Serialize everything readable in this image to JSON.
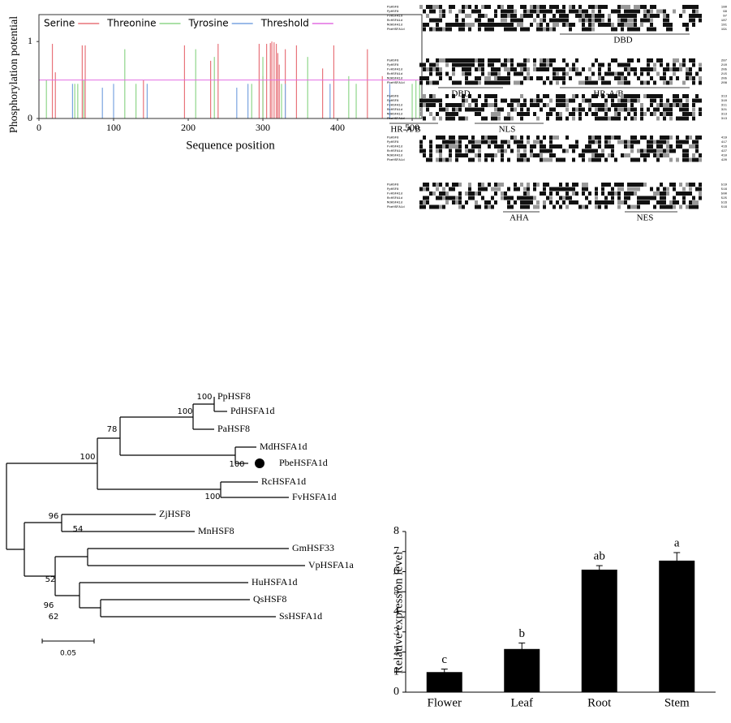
{
  "chart_data": [
    {
      "type": "stem",
      "ylabel": "Phosphorylation potential",
      "xlabel": "Sequence position",
      "xlim": [
        0,
        513
      ],
      "xticks": [
        0,
        100,
        200,
        300,
        400,
        500
      ],
      "ylim": [
        0,
        1.35
      ],
      "yticks": [
        0,
        1
      ],
      "legend": "top",
      "series": [
        {
          "name": "Serine",
          "color": "#e8737a",
          "x": [
            18,
            22,
            58,
            62,
            140,
            195,
            230,
            240,
            295,
            300,
            305,
            310,
            312,
            315,
            318,
            320,
            322,
            330,
            345,
            380,
            395,
            440,
            460
          ],
          "values": [
            0.97,
            0.6,
            0.95,
            0.95,
            0.5,
            0.95,
            0.75,
            0.97,
            0.97,
            0.55,
            0.97,
            0.98,
            1.0,
            0.99,
            0.97,
            0.85,
            0.7,
            0.9,
            0.95,
            0.65,
            0.95,
            0.9,
            0.55
          ]
        },
        {
          "name": "Threonine",
          "color": "#8fd68a",
          "x": [
            10,
            48,
            52,
            60,
            115,
            130,
            210,
            235,
            285,
            300,
            325,
            360,
            415,
            425,
            500,
            505,
            510
          ],
          "values": [
            0.5,
            0.45,
            0.45,
            0.5,
            0.9,
            0.45,
            0.9,
            0.8,
            0.45,
            0.8,
            0.45,
            0.8,
            0.55,
            0.45,
            0.45,
            0.5,
            0.45
          ]
        },
        {
          "name": "Tyrosine",
          "color": "#7aa4e0",
          "x": [
            45,
            85,
            100,
            145,
            265,
            280,
            330,
            390,
            470
          ],
          "values": [
            0.45,
            0.4,
            0.45,
            0.45,
            0.4,
            0.45,
            0.45,
            0.45,
            0.45
          ]
        }
      ],
      "threshold": {
        "name": "Threshold",
        "color": "#e26fe2",
        "value": 0.5
      }
    },
    {
      "type": "bar",
      "ylabel": "Relative expression level",
      "categories": [
        "Flower",
        "Leaf",
        "Root",
        "Stem"
      ],
      "values": [
        1.0,
        2.15,
        6.1,
        6.55
      ],
      "errors": [
        0.15,
        0.3,
        0.2,
        0.4
      ],
      "annotations": [
        "c",
        "b",
        "ab",
        "a"
      ],
      "color": "#000000",
      "ylim": [
        0,
        8
      ],
      "yticks": [
        0,
        1,
        2,
        3,
        4,
        5,
        6,
        7,
        8
      ]
    }
  ],
  "alignment": {
    "names": [
      "PaHSF8",
      "PpHSF8",
      "FvHSFA1d",
      "RcHSFA1d",
      "MdHSFA1d",
      "PbeHSFA1d"
    ],
    "blocks": [
      {
        "ends": [
          180,
          99,
          97,
          187,
          191,
          191
        ],
        "domains": [
          "DBD"
        ]
      },
      {
        "ends": [
          287,
          210,
          205,
          215,
          205,
          208
        ],
        "domains": [
          "DBD",
          "HR-A/B"
        ]
      },
      {
        "ends": [
          313,
          310,
          311,
          321,
          313,
          313
        ],
        "domains": [
          "HR-A/B",
          "NLS"
        ]
      },
      {
        "ends": [
          419,
          417,
          416,
          427,
          410,
          420
        ],
        "domains": []
      },
      {
        "ends": [
          519,
          516,
          500,
          525,
          516,
          516
        ],
        "domains": [
          "AHA",
          "NES"
        ]
      }
    ]
  },
  "tree": {
    "leaves": [
      "PpHSF8",
      "PdHSFA1d",
      "PaHSF8",
      "MdHSFA1d",
      "PbeHSFA1d",
      "RcHSFA1d",
      "FvHSFA1d",
      "ZjHSF8",
      "MnHSF8",
      "GmHSF33",
      "VpHSFA1a",
      "HuHSFA1d",
      "QsHSF8",
      "SsHSFA1d"
    ],
    "bootstrap": [
      100,
      100,
      78,
      100,
      100,
      100,
      96,
      54,
      96,
      52,
      62
    ],
    "scale": "0.05"
  }
}
